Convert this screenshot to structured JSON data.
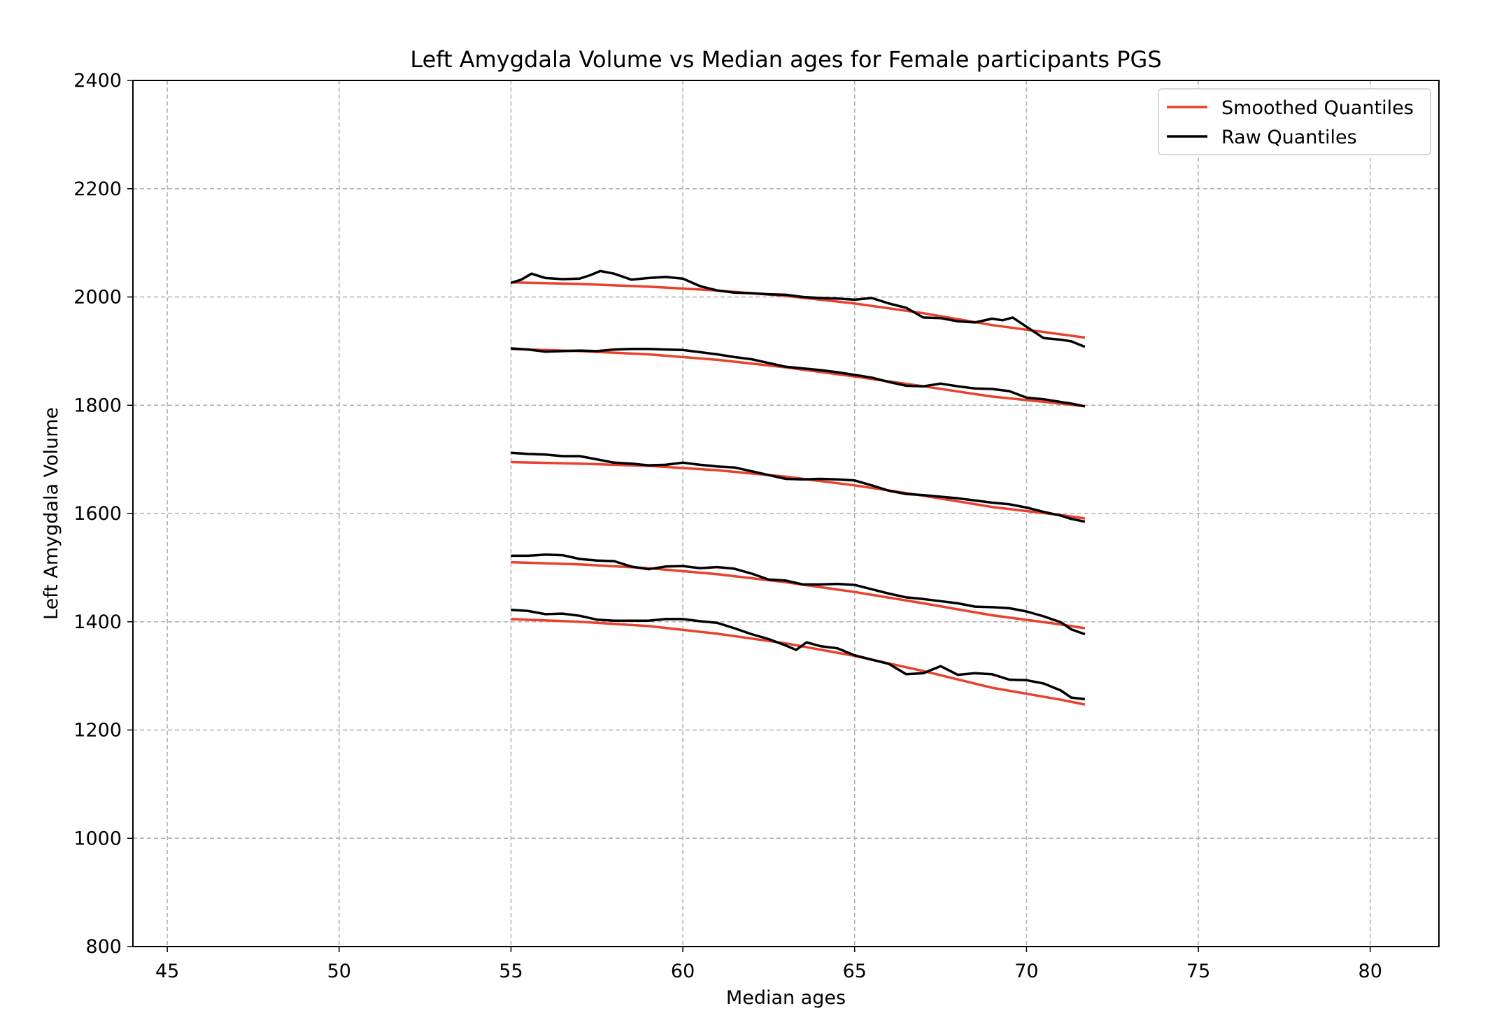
{
  "chart_data": {
    "type": "line",
    "title": "Left Amygdala Volume vs Median ages for Female participants  PGS",
    "xlabel": "Median ages",
    "ylabel": "Left Amygdala Volume",
    "xlim": [
      44,
      82
    ],
    "ylim": [
      800,
      2400
    ],
    "xticks": [
      45,
      50,
      55,
      60,
      65,
      70,
      75,
      80
    ],
    "yticks": [
      800,
      1000,
      1200,
      1400,
      1600,
      1800,
      2000,
      2200,
      2400
    ],
    "grid": true,
    "grid_style": "dashed",
    "legend": {
      "placement": "top-right",
      "entries": [
        {
          "label": "Smoothed Quantiles",
          "color": "#e8412c"
        },
        {
          "label": "Raw Quantiles",
          "color": "#000000"
        }
      ]
    },
    "colors": {
      "smoothed": "#e8412c",
      "raw": "#000000",
      "grid": "#b0b0b0"
    },
    "series": [
      {
        "group": "Smoothed Quantiles",
        "color": "#e8412c",
        "x": [
          55,
          57,
          59,
          61,
          63,
          65,
          67,
          69,
          71,
          71.7
        ],
        "values": [
          1405,
          1400,
          1392,
          1378,
          1360,
          1337,
          1309,
          1278,
          1256,
          1247
        ]
      },
      {
        "group": "Smoothed Quantiles",
        "color": "#e8412c",
        "x": [
          55,
          57,
          59,
          61,
          63,
          65,
          67,
          69,
          71,
          71.7
        ],
        "values": [
          1510,
          1506,
          1499,
          1488,
          1473,
          1455,
          1434,
          1412,
          1395,
          1388
        ]
      },
      {
        "group": "Smoothed Quantiles",
        "color": "#e8412c",
        "x": [
          55,
          57,
          59,
          61,
          63,
          65,
          67,
          69,
          71,
          71.7
        ],
        "values": [
          1695,
          1692,
          1688,
          1680,
          1668,
          1652,
          1633,
          1612,
          1597,
          1591
        ]
      },
      {
        "group": "Smoothed Quantiles",
        "color": "#e8412c",
        "x": [
          55,
          57,
          59,
          61,
          63,
          65,
          67,
          69,
          71,
          71.7
        ],
        "values": [
          1904,
          1900,
          1894,
          1884,
          1870,
          1853,
          1835,
          1816,
          1803,
          1798
        ]
      },
      {
        "group": "Smoothed Quantiles",
        "color": "#e8412c",
        "x": [
          55,
          57,
          59,
          61,
          63,
          65,
          67,
          69,
          71,
          71.7
        ],
        "values": [
          2027,
          2024,
          2019,
          2012,
          2002,
          1988,
          1970,
          1948,
          1931,
          1925
        ]
      },
      {
        "group": "Raw Quantiles",
        "color": "#000000",
        "x": [
          55,
          55.5,
          56,
          56.5,
          57,
          57.5,
          58,
          58.5,
          59,
          59.5,
          60,
          60.5,
          61,
          61.5,
          62,
          62.5,
          63,
          63.3,
          63.6,
          64,
          64.5,
          65,
          65.5,
          66,
          66.5,
          67,
          67.5,
          68,
          68.5,
          69,
          69.5,
          70,
          70.5,
          71,
          71.3,
          71.7
        ],
        "values": [
          1422,
          1420,
          1414,
          1415,
          1411,
          1404,
          1402,
          1402,
          1402,
          1405,
          1405,
          1401,
          1398,
          1388,
          1377,
          1368,
          1356,
          1348,
          1362,
          1355,
          1351,
          1338,
          1330,
          1322,
          1303,
          1305,
          1318,
          1302,
          1305,
          1303,
          1293,
          1292,
          1286,
          1273,
          1260,
          1257
        ]
      },
      {
        "group": "Raw Quantiles",
        "color": "#000000",
        "x": [
          55,
          55.5,
          56,
          56.5,
          57,
          57.5,
          58,
          58.5,
          59,
          59.5,
          60,
          60.5,
          61,
          61.5,
          62,
          62.5,
          63,
          63.5,
          64,
          64.5,
          65,
          65.5,
          66,
          66.5,
          67,
          67.5,
          68,
          68.5,
          69,
          69.5,
          70,
          70.5,
          71,
          71.3,
          71.7
        ],
        "values": [
          1522,
          1522,
          1524,
          1523,
          1516,
          1513,
          1512,
          1502,
          1497,
          1502,
          1503,
          1499,
          1501,
          1498,
          1489,
          1478,
          1476,
          1469,
          1469,
          1470,
          1468,
          1460,
          1452,
          1445,
          1442,
          1438,
          1434,
          1428,
          1427,
          1425,
          1419,
          1410,
          1399,
          1386,
          1377
        ]
      },
      {
        "group": "Raw Quantiles",
        "color": "#000000",
        "x": [
          55,
          55.5,
          56,
          56.5,
          57,
          57.5,
          58,
          58.5,
          59,
          59.5,
          60,
          60.5,
          61,
          61.5,
          62,
          62.5,
          63,
          63.5,
          64,
          64.5,
          65,
          65.5,
          66,
          66.5,
          67,
          67.5,
          68,
          68.5,
          69,
          69.5,
          70,
          70.5,
          71,
          71.3,
          71.7
        ],
        "values": [
          1712,
          1710,
          1709,
          1706,
          1706,
          1700,
          1694,
          1692,
          1689,
          1690,
          1694,
          1690,
          1687,
          1685,
          1678,
          1671,
          1664,
          1663,
          1664,
          1663,
          1661,
          1652,
          1642,
          1636,
          1634,
          1631,
          1628,
          1624,
          1620,
          1617,
          1611,
          1603,
          1596,
          1590,
          1585
        ]
      },
      {
        "group": "Raw Quantiles",
        "color": "#000000",
        "x": [
          55,
          55.5,
          56,
          56.5,
          57,
          57.5,
          58,
          58.5,
          59,
          59.5,
          60,
          60.5,
          61,
          61.5,
          62,
          62.5,
          63,
          63.5,
          64,
          64.5,
          65,
          65.5,
          66,
          66.5,
          67,
          67.5,
          68,
          68.5,
          69,
          69.5,
          70,
          70.5,
          71,
          71.3,
          71.7
        ],
        "values": [
          1905,
          1903,
          1899,
          1900,
          1901,
          1900,
          1903,
          1904,
          1904,
          1903,
          1902,
          1898,
          1894,
          1889,
          1885,
          1878,
          1871,
          1868,
          1865,
          1861,
          1856,
          1851,
          1843,
          1836,
          1835,
          1840,
          1835,
          1831,
          1830,
          1826,
          1814,
          1811,
          1806,
          1803,
          1798
        ]
      },
      {
        "group": "Raw Quantiles",
        "color": "#000000",
        "x": [
          55,
          55.3,
          55.6,
          56,
          56.5,
          57,
          57.3,
          57.6,
          58,
          58.5,
          59,
          59.5,
          60,
          60.5,
          61,
          61.5,
          62,
          62.5,
          63,
          63.5,
          64,
          64.5,
          65,
          65.5,
          66,
          66.5,
          67,
          67.5,
          68,
          68.5,
          69,
          69.3,
          69.6,
          70,
          70.5,
          71,
          71.3,
          71.7
        ],
        "values": [
          2026,
          2032,
          2043,
          2035,
          2033,
          2034,
          2040,
          2048,
          2043,
          2032,
          2035,
          2037,
          2034,
          2020,
          2012,
          2008,
          2007,
          2005,
          2004,
          2000,
          1998,
          1997,
          1995,
          1998,
          1988,
          1980,
          1962,
          1961,
          1955,
          1953,
          1960,
          1957,
          1962,
          1945,
          1924,
          1921,
          1918,
          1908
        ]
      }
    ]
  }
}
